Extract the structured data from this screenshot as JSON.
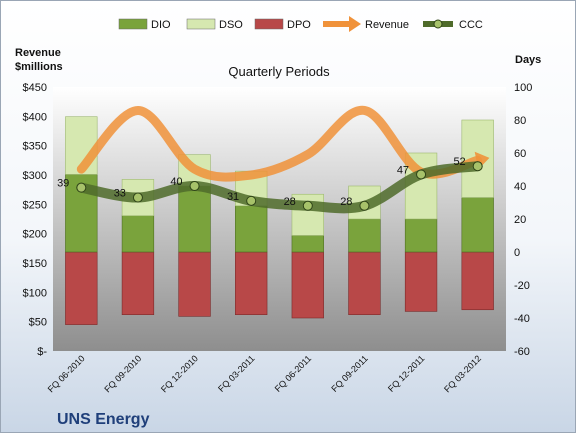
{
  "company": "UNS Energy",
  "chart_data": {
    "type": "bar",
    "title": "Quarterly Periods",
    "left_axis_label_line1": "Revenue",
    "left_axis_label_line2": "$millions",
    "right_axis_label": "Days",
    "categories": [
      "FQ 06-2010",
      "FQ 09-2010",
      "FQ 12-2010",
      "FQ 03-2011",
      "FQ 06-2011",
      "FQ 09-2011",
      "FQ 12-2011",
      "FQ 03-2012"
    ],
    "left_ylim": [
      0,
      450
    ],
    "left_ticks": [
      "$-",
      "$50",
      "$100",
      "$150",
      "$200",
      "$250",
      "$300",
      "$350",
      "$400",
      "$450"
    ],
    "right_ylim": [
      -60,
      100
    ],
    "right_ticks": [
      "-60",
      "-40",
      "-20",
      "0",
      "20",
      "40",
      "60",
      "80",
      "100"
    ],
    "series": [
      {
        "name": "DIO",
        "axis": "right",
        "color": "#7aa33c",
        "values": [
          47,
          22,
          40,
          28,
          10,
          20,
          20,
          33
        ]
      },
      {
        "name": "DSO",
        "axis": "right",
        "color": "#d6e8b0",
        "values": [
          35,
          22,
          19,
          21,
          25,
          20,
          40,
          47
        ]
      },
      {
        "name": "DPO",
        "axis": "right",
        "color": "#b84848",
        "values": [
          -44,
          -38,
          -39,
          -38,
          -40,
          -38,
          -36,
          -35
        ]
      },
      {
        "name": "Revenue",
        "axis": "left",
        "color": "#f0923a",
        "values": [
          310,
          410,
          310,
          300,
          335,
          410,
          305,
          325
        ]
      },
      {
        "name": "CCC",
        "axis": "right",
        "color": "#4f6b2a",
        "values": [
          39,
          33,
          40,
          31,
          28,
          28,
          47,
          52
        ]
      }
    ],
    "ccc_labels": [
      "39",
      "33",
      "40",
      "31",
      "28",
      "28",
      "47",
      "52"
    ],
    "legend_position": "top",
    "grid": false
  }
}
